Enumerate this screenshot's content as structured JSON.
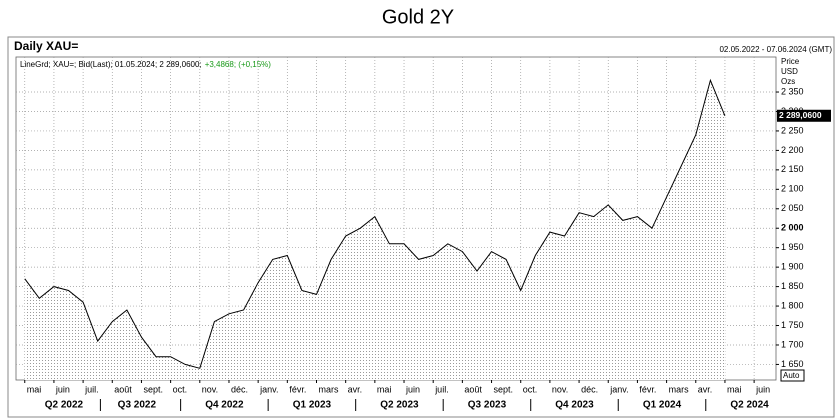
{
  "chart_data": {
    "type": "line",
    "title": "Gold 2Y",
    "subtitle": "Daily XAU=",
    "date_range": "02.05.2022 - 07.06.2024 (GMT)",
    "info": [
      {
        "text": "LineGrd; XAU=; Bid(Last); 01.05.2024; 2 289,0600;",
        "color": "#000000"
      },
      {
        "text": "+3,4868; (+0,15%)",
        "color": "#1a9a1a"
      }
    ],
    "axis_title": [
      "Price",
      "USD",
      "Ozs"
    ],
    "last_value_label": "2 289,0600",
    "button": "Auto",
    "x": [
      0,
      0.5,
      1,
      1.5,
      2,
      2.5,
      3,
      3.5,
      4,
      4.5,
      5,
      5.5,
      6,
      6.5,
      7,
      7.5,
      8,
      8.5,
      9,
      9.5,
      10,
      10.5,
      11,
      11.5,
      12,
      12.5,
      13,
      13.5,
      14,
      14.5,
      15,
      15.5,
      16,
      16.5,
      17,
      17.5,
      18,
      18.5,
      19,
      19.5,
      20,
      20.5,
      21,
      21.5,
      22,
      22.5,
      23,
      23.5,
      24
    ],
    "series": [
      {
        "name": "XAU=",
        "color": "#000000",
        "values": [
          1870,
          1820,
          1850,
          1840,
          1810,
          1710,
          1760,
          1790,
          1720,
          1670,
          1670,
          1650,
          1640,
          1760,
          1780,
          1790,
          1860,
          1920,
          1930,
          1840,
          1830,
          1920,
          1980,
          2000,
          2030,
          1960,
          1960,
          1920,
          1930,
          1960,
          1940,
          1890,
          1940,
          1920,
          1840,
          1930,
          1990,
          1980,
          2040,
          2030,
          2060,
          2020,
          2030,
          2000,
          2080,
          2160,
          2240,
          2380,
          2289
        ]
      }
    ],
    "xlim": [
      -0.3,
      25.75
    ],
    "xticks": [
      {
        "value": 0,
        "label": "mai"
      },
      {
        "value": 1,
        "label": "juin"
      },
      {
        "value": 2,
        "label": "juil."
      },
      {
        "value": 3,
        "label": "août"
      },
      {
        "value": 4,
        "label": "sept."
      },
      {
        "value": 5,
        "label": "oct."
      },
      {
        "value": 6,
        "label": "nov."
      },
      {
        "value": 7,
        "label": "déc."
      },
      {
        "value": 8,
        "label": "janv."
      },
      {
        "value": 9,
        "label": "févr."
      },
      {
        "value": 10,
        "label": "mars"
      },
      {
        "value": 11,
        "label": "avr."
      },
      {
        "value": 12,
        "label": "mai"
      },
      {
        "value": 13,
        "label": "juin"
      },
      {
        "value": 14,
        "label": "juil."
      },
      {
        "value": 15,
        "label": "août"
      },
      {
        "value": 16,
        "label": "sept."
      },
      {
        "value": 17,
        "label": "oct."
      },
      {
        "value": 18,
        "label": "nov."
      },
      {
        "value": 19,
        "label": "déc."
      },
      {
        "value": 20,
        "label": "janv."
      },
      {
        "value": 21,
        "label": "févr."
      },
      {
        "value": 22,
        "label": "mars"
      },
      {
        "value": 23,
        "label": "avr."
      },
      {
        "value": 24,
        "label": "mai"
      },
      {
        "value": 25,
        "label": "juin"
      }
    ],
    "quarter_labels": [
      {
        "value": 1,
        "label": "Q2 2022"
      },
      {
        "value": 3.5,
        "label": "Q3 2022"
      },
      {
        "value": 6.5,
        "label": "Q4 2022"
      },
      {
        "value": 9.5,
        "label": "Q1 2023"
      },
      {
        "value": 12.5,
        "label": "Q2 2023"
      },
      {
        "value": 15.5,
        "label": "Q3 2023"
      },
      {
        "value": 18.5,
        "label": "Q4 2023"
      },
      {
        "value": 21.5,
        "label": "Q1 2024"
      },
      {
        "value": 24.5,
        "label": "Q2 2024"
      }
    ],
    "ylim": [
      1610,
      2440
    ],
    "yticks": [
      {
        "value": 1650,
        "label": "1 650"
      },
      {
        "value": 1700,
        "label": "1 700"
      },
      {
        "value": 1750,
        "label": "1 750"
      },
      {
        "value": 1800,
        "label": "1 800"
      },
      {
        "value": 1850,
        "label": "1 850"
      },
      {
        "value": 1900,
        "label": "1 900"
      },
      {
        "value": 1950,
        "label": "1 950"
      },
      {
        "value": 2000,
        "label": "2 000",
        "bold": true
      },
      {
        "value": 2050,
        "label": "2 050"
      },
      {
        "value": 2100,
        "label": "2 100"
      },
      {
        "value": 2150,
        "label": "2 150"
      },
      {
        "value": 2200,
        "label": "2 200"
      },
      {
        "value": 2250,
        "label": "2 250"
      },
      {
        "value": 2300,
        "label": "2 300"
      },
      {
        "value": 2350,
        "label": "2 350"
      }
    ],
    "grid": true
  }
}
